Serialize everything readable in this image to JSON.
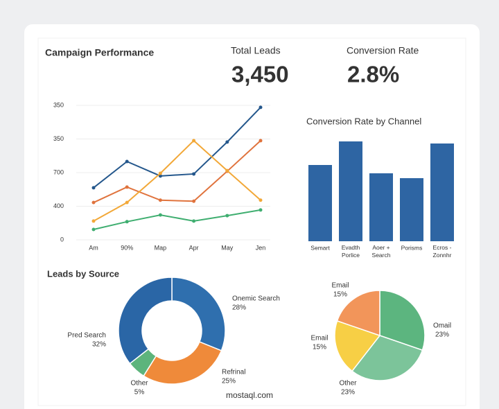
{
  "kpis": [
    {
      "label": "Total Leads",
      "value": "3,450"
    },
    {
      "label": "Conversion Rate",
      "value": "2.8%"
    }
  ],
  "watermark": "mostaql.com",
  "chart_data": [
    {
      "type": "line",
      "title": "Campaign Performance",
      "categories": [
        "Am",
        "90%",
        "Map",
        "Apr",
        "May",
        "Jen"
      ],
      "series": [
        {
          "color": "#24578c",
          "values": [
            155,
            233,
            190,
            196,
            291,
            394
          ]
        },
        {
          "color": "#e0733d",
          "values": [
            111,
            157,
            118,
            115,
            204,
            295
          ]
        },
        {
          "color": "#f2a838",
          "values": [
            56,
            111,
            198,
            295,
            206,
            118
          ]
        },
        {
          "color": "#3fae70",
          "values": [
            31,
            54,
            74,
            56,
            72,
            89
          ]
        }
      ],
      "ylim": [
        0,
        400
      ],
      "yticks": [
        0,
        {
          "value": 100,
          "label": "400"
        },
        {
          "value": 200,
          "label": "700"
        },
        {
          "value": 300,
          "label": "350"
        },
        {
          "value": 400,
          "label": "350"
        }
      ],
      "grid": true
    },
    {
      "type": "bar",
      "title": "Conversion Rate by Channel",
      "categories": [
        "Semart",
        "Evadth Porlice",
        "Aoer + Search",
        "Porisms",
        "Ecros - Zonnhr"
      ],
      "values": [
        110,
        144,
        98,
        91,
        141
      ],
      "color": "#2e65a3",
      "ylim": [
        0,
        150
      ]
    },
    {
      "type": "donut",
      "title": "Leads by Source",
      "categories": [
        "Onemic Search",
        "Refrinal",
        "Other",
        "Pred Search"
      ],
      "values": [
        28,
        25,
        5,
        32
      ],
      "value_labels": [
        "28%",
        "25%",
        "5%",
        "32%"
      ],
      "colors": [
        "#2f6fae",
        "#ef8a3a",
        "#5db47c",
        "#2a66a6"
      ]
    },
    {
      "type": "pie",
      "categories": [
        "Omail",
        "Other",
        "Email",
        "Email"
      ],
      "values": [
        23,
        23,
        15,
        15
      ],
      "value_labels": [
        "23%",
        "23%",
        "15%",
        "15%"
      ],
      "colors": [
        "#5cb57f",
        "#7cc49a",
        "#f7cf45",
        "#f2955a"
      ]
    }
  ]
}
